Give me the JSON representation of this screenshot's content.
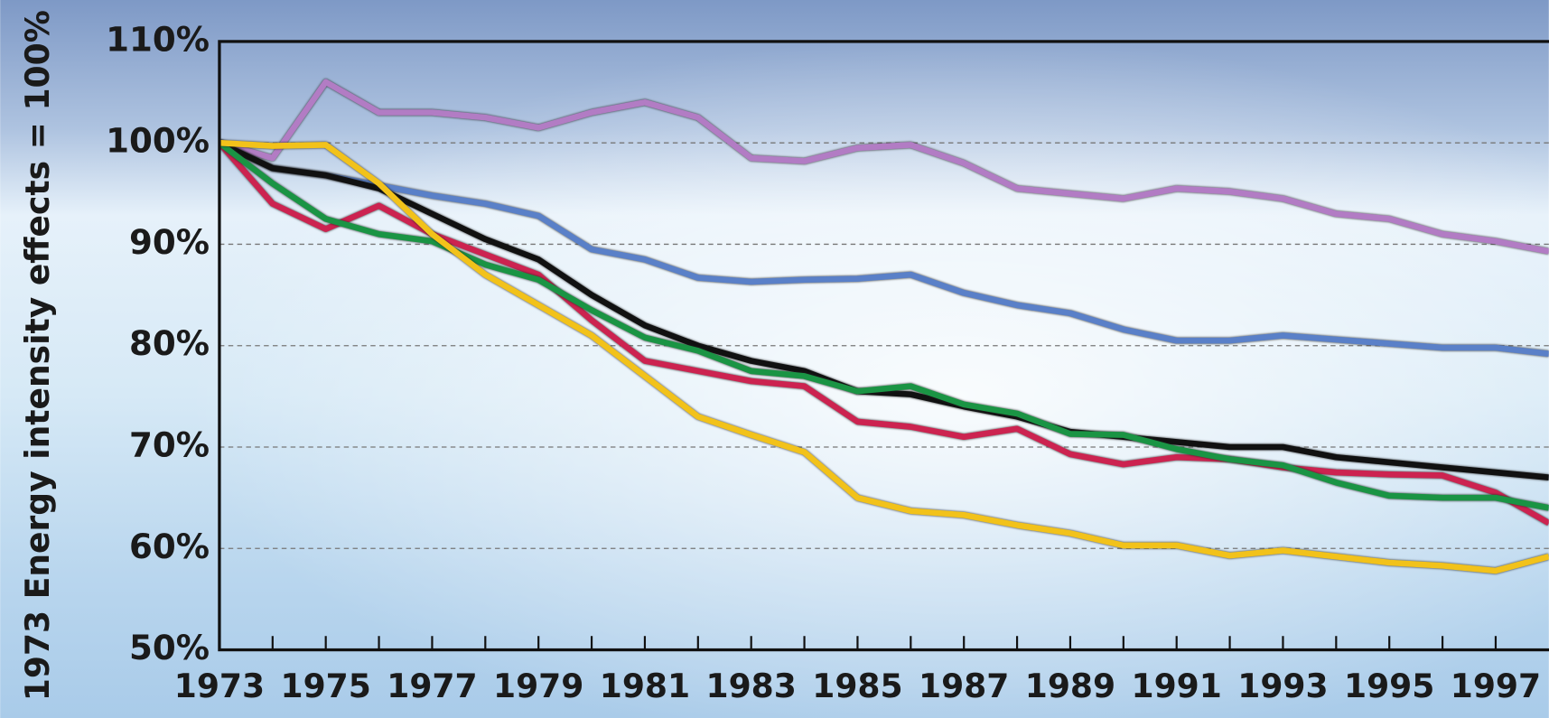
{
  "chart_data": {
    "type": "line",
    "ylabel": "1973 Energy intensity effects = 100%",
    "x": [
      1973,
      1974,
      1975,
      1976,
      1977,
      1978,
      1979,
      1980,
      1981,
      1982,
      1983,
      1984,
      1985,
      1986,
      1987,
      1988,
      1989,
      1990,
      1991,
      1992,
      1993,
      1994,
      1995,
      1996,
      1997,
      1998
    ],
    "xlim": [
      1973,
      1998
    ],
    "xticks": [
      1973,
      1975,
      1977,
      1979,
      1981,
      1983,
      1985,
      1987,
      1989,
      1991,
      1993,
      1995,
      1997
    ],
    "xminorticks": [
      1974,
      1976,
      1978,
      1980,
      1982,
      1984,
      1986,
      1988,
      1990,
      1992,
      1994,
      1996
    ],
    "ylim": [
      50,
      110
    ],
    "yticks": [
      {
        "value": 50,
        "label": "50%"
      },
      {
        "value": 60,
        "label": "60%"
      },
      {
        "value": 70,
        "label": "70%"
      },
      {
        "value": 80,
        "label": "80%"
      },
      {
        "value": 90,
        "label": "90%"
      },
      {
        "value": 100,
        "label": "100%"
      },
      {
        "value": 110,
        "label": "110%"
      }
    ],
    "grid": true,
    "series": [
      {
        "color": "#b27cc4",
        "values": [
          100,
          98.5,
          106,
          103,
          103,
          102.5,
          101.5,
          103,
          104,
          102.5,
          98.5,
          98.2,
          99.5,
          99.8,
          98,
          95.5,
          95,
          94.5,
          95.5,
          95.2,
          94.5,
          93,
          92.5,
          91,
          90.3,
          89.3
        ]
      },
      {
        "color": "#5a80c8",
        "values": [
          100,
          97.5,
          96.8,
          95.8,
          94.8,
          94,
          92.8,
          89.5,
          88.5,
          86.7,
          86.3,
          86.5,
          86.6,
          87,
          85.2,
          84,
          83.2,
          81.6,
          80.5,
          80.5,
          81,
          80.6,
          80.2,
          79.8,
          79.8,
          79.2
        ]
      },
      {
        "color": "#111111",
        "values": [
          100,
          97.5,
          96.8,
          95.5,
          93,
          90.5,
          88.5,
          85,
          82,
          80,
          78.5,
          77.5,
          75.5,
          75.2,
          74,
          73,
          71.5,
          71,
          70.5,
          70,
          70,
          69,
          68.5,
          68,
          67.5,
          67
        ]
      },
      {
        "color": "#cc2350",
        "values": [
          100,
          94,
          91.5,
          93.8,
          91,
          89,
          87,
          82.5,
          78.5,
          77.5,
          76.5,
          76,
          72.5,
          72,
          71,
          71.8,
          69.3,
          68.3,
          69,
          68.8,
          68,
          67.5,
          67.3,
          67.2,
          65.5,
          62.5
        ]
      },
      {
        "color": "#1a9444",
        "values": [
          100,
          96,
          92.5,
          91,
          90.3,
          88,
          86.5,
          83.5,
          80.8,
          79.5,
          77.5,
          77,
          75.5,
          76,
          74.2,
          73.3,
          71.3,
          71.2,
          69.8,
          68.8,
          68.2,
          66.5,
          65.2,
          65,
          65,
          64
        ]
      },
      {
        "color": "#f2c21a",
        "values": [
          100,
          99.7,
          99.8,
          96,
          91,
          87,
          84,
          81,
          77,
          73,
          71.2,
          69.5,
          65,
          63.7,
          63.3,
          62.3,
          61.5,
          60.3,
          60.3,
          59.3,
          59.8,
          59.2,
          58.6,
          58.3,
          57.8,
          59.2
        ]
      }
    ]
  }
}
